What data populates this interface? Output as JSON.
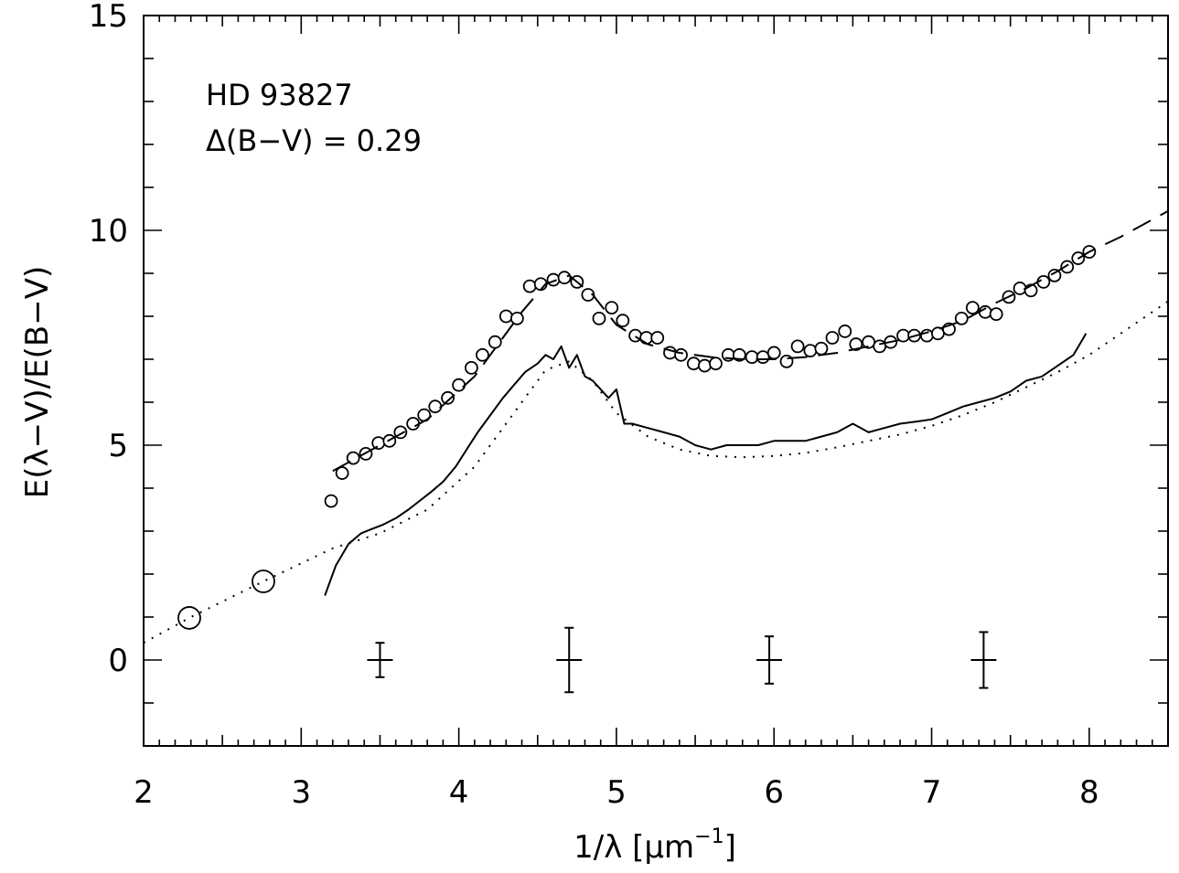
{
  "chart_data": {
    "type": "scatter",
    "xlabel": "1/λ [μm⁻¹]",
    "xlabel_parts": {
      "base": "1/λ [μm",
      "sup": "−1",
      "close": "]"
    },
    "ylabel": "E(λ−V)/E(B−V)",
    "xlim": [
      2,
      8.5
    ],
    "ylim": [
      -2,
      15
    ],
    "xticks": [
      2,
      3,
      4,
      5,
      6,
      7,
      8
    ],
    "xtick_labels": [
      "2",
      "3",
      "4",
      "5",
      "6",
      "7",
      "8"
    ],
    "yticks": [
      0,
      5,
      10,
      15
    ],
    "ytick_labels": [
      "0",
      "5",
      "10",
      "15"
    ],
    "grid": false,
    "annotations": [
      "HD 93827",
      "Δ(B−V) = 0.29"
    ],
    "series": [
      {
        "style": "open-circles-small",
        "x": [
          3.19,
          3.26,
          3.33,
          3.41,
          3.49,
          3.56,
          3.63,
          3.71,
          3.78,
          3.85,
          3.93,
          4.0,
          4.08,
          4.15,
          4.23,
          4.3,
          4.37,
          4.45,
          4.52,
          4.6,
          4.67,
          4.75,
          4.82,
          4.89,
          4.97,
          5.04,
          5.12,
          5.19,
          5.26,
          5.34,
          5.41,
          5.49,
          5.56,
          5.63,
          5.71,
          5.78,
          5.86,
          5.93,
          6.0,
          6.08,
          6.15,
          6.23,
          6.3,
          6.37,
          6.45,
          6.52,
          6.6,
          6.67,
          6.74,
          6.82,
          6.89,
          6.97,
          7.04,
          7.11,
          7.19,
          7.26,
          7.34,
          7.41,
          7.49,
          7.56,
          7.63,
          7.71,
          7.78,
          7.86,
          7.93,
          8.0
        ],
        "y": [
          3.7,
          4.35,
          4.7,
          4.8,
          5.05,
          5.1,
          5.3,
          5.5,
          5.7,
          5.9,
          6.1,
          6.4,
          6.8,
          7.1,
          7.4,
          8.0,
          7.95,
          8.7,
          8.75,
          8.85,
          8.9,
          8.8,
          8.5,
          7.95,
          8.2,
          7.9,
          7.55,
          7.5,
          7.5,
          7.15,
          7.1,
          6.9,
          6.85,
          6.9,
          7.1,
          7.1,
          7.05,
          7.05,
          7.15,
          6.95,
          7.3,
          7.2,
          7.25,
          7.5,
          7.65,
          7.35,
          7.4,
          7.3,
          7.4,
          7.55,
          7.55,
          7.55,
          7.6,
          7.7,
          7.95,
          8.2,
          8.1,
          8.05,
          8.45,
          8.65,
          8.6,
          8.8,
          8.95,
          9.15,
          9.35,
          9.5
        ]
      },
      {
        "style": "open-circles-large",
        "x": [
          2.29,
          2.76
        ],
        "y": [
          0.98,
          1.83
        ]
      },
      {
        "style": "dashed-line-fit",
        "x": [
          3.2,
          3.5,
          3.8,
          4.1,
          4.4,
          4.55,
          4.7,
          4.85,
          5.0,
          5.2,
          5.4,
          5.6,
          5.8,
          6.0,
          6.2,
          6.4,
          6.6,
          6.8,
          7.0,
          7.2,
          7.4,
          7.6,
          7.8,
          8.0,
          8.2,
          8.5
        ],
        "y": [
          4.4,
          5.0,
          5.6,
          6.6,
          8.1,
          8.75,
          8.95,
          8.5,
          7.8,
          7.35,
          7.15,
          7.05,
          7.0,
          7.0,
          7.05,
          7.15,
          7.3,
          7.45,
          7.65,
          7.9,
          8.3,
          8.65,
          9.05,
          9.5,
          9.85,
          10.45
        ]
      },
      {
        "style": "dotted-line-fit",
        "x": [
          2.0,
          2.29,
          2.76,
          3.2,
          3.5,
          3.8,
          4.1,
          4.4,
          4.55,
          4.7,
          4.85,
          5.0,
          5.2,
          5.4,
          5.6,
          5.8,
          6.0,
          6.2,
          6.4,
          6.6,
          6.8,
          7.0,
          7.2,
          7.4,
          7.6,
          7.8,
          8.0,
          8.2,
          8.5
        ],
        "y": [
          0.4,
          0.98,
          1.83,
          2.6,
          2.95,
          3.5,
          4.5,
          6.0,
          6.75,
          6.95,
          6.5,
          5.75,
          5.2,
          4.9,
          4.75,
          4.72,
          4.75,
          4.82,
          4.95,
          5.1,
          5.25,
          5.45,
          5.7,
          6.0,
          6.35,
          6.7,
          7.1,
          7.6,
          8.35
        ]
      },
      {
        "style": "solid-noisy-spectrum",
        "x": [
          3.15,
          3.22,
          3.3,
          3.38,
          3.45,
          3.52,
          3.6,
          3.68,
          3.75,
          3.82,
          3.9,
          3.98,
          4.05,
          4.12,
          4.2,
          4.28,
          4.35,
          4.42,
          4.5,
          4.55,
          4.6,
          4.65,
          4.7,
          4.75,
          4.8,
          4.85,
          4.9,
          4.95,
          5.0,
          5.05,
          5.1,
          5.2,
          5.3,
          5.4,
          5.5,
          5.6,
          5.7,
          5.8,
          5.9,
          6.0,
          6.1,
          6.2,
          6.3,
          6.4,
          6.5,
          6.6,
          6.7,
          6.8,
          6.9,
          7.0,
          7.1,
          7.2,
          7.3,
          7.4,
          7.5,
          7.6,
          7.7,
          7.8,
          7.9,
          7.98
        ],
        "y": [
          1.5,
          2.2,
          2.7,
          2.95,
          3.05,
          3.15,
          3.3,
          3.5,
          3.7,
          3.9,
          4.15,
          4.5,
          4.9,
          5.3,
          5.7,
          6.1,
          6.4,
          6.7,
          6.9,
          7.1,
          7.0,
          7.3,
          6.8,
          7.1,
          6.6,
          6.5,
          6.3,
          6.1,
          6.3,
          5.5,
          5.5,
          5.4,
          5.3,
          5.2,
          5.0,
          4.9,
          5.0,
          5.0,
          5.0,
          5.1,
          5.1,
          5.1,
          5.2,
          5.3,
          5.5,
          5.3,
          5.4,
          5.5,
          5.55,
          5.6,
          5.75,
          5.9,
          6.0,
          6.1,
          6.25,
          6.5,
          6.6,
          6.85,
          7.1,
          7.6
        ]
      },
      {
        "style": "error-bars",
        "x": [
          3.5,
          4.7,
          5.97,
          7.33
        ],
        "y": [
          0,
          0,
          0,
          0
        ],
        "yerr": [
          0.4,
          0.75,
          0.55,
          0.65
        ]
      }
    ]
  }
}
